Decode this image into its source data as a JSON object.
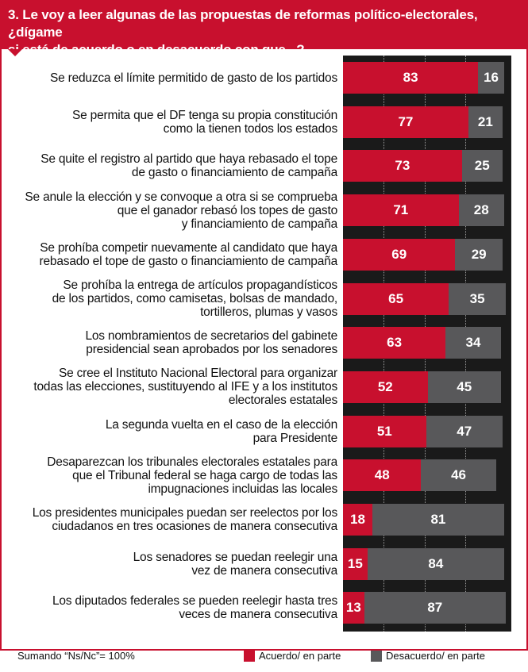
{
  "header": {
    "title_line1": "3. Le voy a leer algunas de las propuestas de reformas político-electorales,  ¿dígame",
    "title_line2": "si está de acuerdo o en desacuerdo con que...?"
  },
  "colors": {
    "agree": "#c8102e",
    "disagree": "#58585a",
    "panel": "#1a1a1a"
  },
  "footer": {
    "note": "Sumando “Ns/Nc”= 100%"
  },
  "chart_data": {
    "type": "bar",
    "orientation": "horizontal",
    "stacked": true,
    "xlim": [
      0,
      100
    ],
    "legend_position": "bottom",
    "categories": [
      [
        "Se reduzca el límite permitido de gasto de los partidos"
      ],
      [
        "Se permita que el DF tenga su propia constitución",
        "como la tienen todos los estados"
      ],
      [
        "Se quite el registro al partido que haya rebasado el tope",
        "de gasto o financiamiento de campaña"
      ],
      [
        "Se anule la elección y se convoque a otra si se comprueba",
        "que el ganador rebasó los topes de gasto",
        "y financiamiento de campaña"
      ],
      [
        "Se prohíba competir nuevamente al candidato que haya",
        "rebasado el tope de gasto o financiamiento de campaña"
      ],
      [
        "Se prohíba la entrega de artículos propagandísticos",
        "de los partidos, como camisetas, bolsas de mandado,",
        "tortilleros, plumas y vasos"
      ],
      [
        "Los nombramientos de secretarios del gabinete",
        "presidencial sean aprobados por los senadores"
      ],
      [
        "Se cree el Instituto Nacional Electoral para organizar",
        "todas las elecciones, sustituyendo al IFE y a los institutos",
        "electorales estatales"
      ],
      [
        "La segunda vuelta en el caso de la elección",
        "para Presidente"
      ],
      [
        "Desaparezcan los tribunales electorales estatales para",
        "que el Tribunal federal se haga cargo de todas las",
        "impugnaciones incluidas las locales"
      ],
      [
        "Los presidentes municipales puedan ser reelectos por los",
        "ciudadanos en tres ocasiones de manera consecutiva"
      ],
      [
        "Los senadores se puedan reelegir una",
        "vez de manera consecutiva"
      ],
      [
        "Los diputados federales se pueden reelegir hasta tres",
        "veces de manera consecutiva"
      ]
    ],
    "series": [
      {
        "name": "Acuerdo/ en parte",
        "values": [
          83,
          77,
          73,
          71,
          69,
          65,
          63,
          52,
          51,
          48,
          18,
          15,
          13
        ]
      },
      {
        "name": "Desacuerdo/ en parte",
        "values": [
          16,
          21,
          25,
          28,
          29,
          35,
          34,
          45,
          47,
          46,
          81,
          84,
          87
        ]
      }
    ]
  }
}
